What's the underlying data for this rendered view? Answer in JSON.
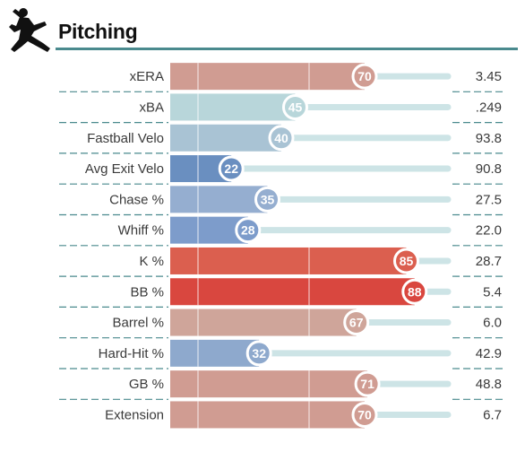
{
  "title": "Pitching",
  "icon": "pitcher-silhouette-icon",
  "chart_data": {
    "type": "bar",
    "orientation": "horizontal",
    "title": "Pitching",
    "xlim": [
      0,
      100
    ],
    "reference_lines": [
      10,
      50,
      90
    ],
    "categories": [
      "xERA",
      "xBA",
      "Fastball Velo",
      "Avg Exit Velo",
      "Chase %",
      "Whiff %",
      "K %",
      "BB %",
      "Barrel %",
      "Hard-Hit %",
      "GB %",
      "Extension"
    ],
    "values": [
      70,
      45,
      40,
      22,
      35,
      28,
      85,
      88,
      67,
      32,
      71,
      70
    ],
    "stat_values": [
      "3.45",
      ".249",
      "93.8",
      "90.8",
      "27.5",
      "22.0",
      "28.7",
      "5.4",
      "6.0",
      "42.9",
      "48.8",
      "6.7"
    ],
    "bar_colors": [
      "#d09c92",
      "#b8d6da",
      "#a9c3d4",
      "#6a8fc0",
      "#95aed0",
      "#7d9ccb",
      "#db5f4f",
      "#d9473f",
      "#cfa59a",
      "#8ea9cd",
      "#d09c92",
      "#d09c92"
    ],
    "track_color": "#cde4e6",
    "separator_color": "#4a8a8e"
  }
}
